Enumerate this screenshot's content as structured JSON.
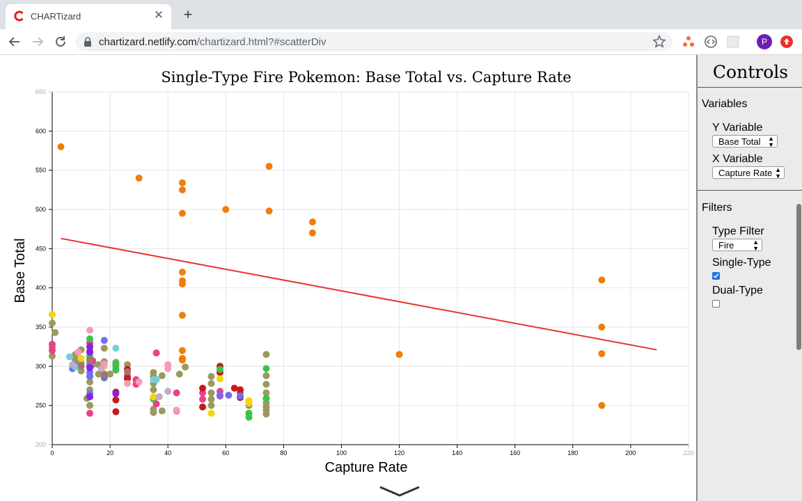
{
  "browser": {
    "tab_title": "CHARTizard",
    "url_host": "chartizard.netlify.com",
    "url_path": "/chartizard.html?#scatterDiv",
    "avatar_letter": "P"
  },
  "controls": {
    "title": "Controls",
    "variables_heading": "Variables",
    "y_label": "Y Variable",
    "y_value": "Base Total",
    "x_label": "X Variable",
    "x_value": "Capture Rate",
    "filters_heading": "Filters",
    "type_label": "Type Filter",
    "type_value": "Fire",
    "single_label": "Single-Type",
    "single_checked": true,
    "dual_label": "Dual-Type",
    "dual_checked": false
  },
  "chart_data": {
    "type": "scatter",
    "title": "Single-Type Fire Pokemon: Base Total vs. Capture Rate",
    "xlabel": "Capture Rate",
    "ylabel": "Base Total",
    "xlim": [
      0,
      220
    ],
    "ylim": [
      200,
      650
    ],
    "xticks": [
      0,
      20,
      40,
      60,
      80,
      100,
      120,
      140,
      160,
      180,
      200,
      220
    ],
    "yticks": [
      200,
      250,
      300,
      350,
      400,
      450,
      500,
      550,
      600,
      650
    ],
    "grid": true,
    "trendline": {
      "color": "#e8322c",
      "x": [
        3,
        209
      ],
      "y": [
        463,
        321
      ]
    },
    "series": [
      {
        "color": "#f07d0a",
        "points": [
          [
            3,
            580
          ],
          [
            30,
            540
          ],
          [
            45,
            534
          ],
          [
            45,
            525
          ],
          [
            45,
            495
          ],
          [
            60,
            500
          ],
          [
            75,
            555
          ],
          [
            75,
            498
          ],
          [
            90,
            484
          ],
          [
            90,
            470
          ],
          [
            45,
            420
          ],
          [
            45,
            409
          ],
          [
            45,
            405
          ],
          [
            45,
            365
          ],
          [
            45,
            320
          ],
          [
            45,
            310
          ],
          [
            45,
            308
          ],
          [
            120,
            315
          ],
          [
            190,
            410
          ],
          [
            190,
            350
          ],
          [
            190,
            316
          ],
          [
            190,
            250
          ]
        ]
      },
      {
        "color": "#9a9a5e",
        "points": [
          [
            0,
            355
          ],
          [
            1,
            343
          ],
          [
            0,
            324
          ],
          [
            0,
            313
          ],
          [
            8,
            315
          ],
          [
            8,
            308
          ],
          [
            10,
            304
          ],
          [
            10,
            294
          ],
          [
            10,
            321
          ],
          [
            12,
            259
          ],
          [
            13,
            280
          ],
          [
            13,
            310
          ],
          [
            13,
            320
          ],
          [
            13,
            270
          ],
          [
            13,
            250
          ],
          [
            14,
            302
          ],
          [
            16,
            302
          ],
          [
            16,
            290
          ],
          [
            18,
            323
          ],
          [
            18,
            306
          ],
          [
            18,
            285
          ],
          [
            20,
            290
          ],
          [
            22,
            300
          ],
          [
            22,
            305
          ],
          [
            22,
            295
          ],
          [
            26,
            302
          ],
          [
            26,
            284
          ],
          [
            35,
            292
          ],
          [
            35,
            287
          ],
          [
            35,
            278
          ],
          [
            35,
            270
          ],
          [
            35,
            258
          ],
          [
            35,
            245
          ],
          [
            35,
            241
          ],
          [
            38,
            288
          ],
          [
            38,
            243
          ],
          [
            44,
            290
          ],
          [
            46,
            299
          ],
          [
            55,
            287
          ],
          [
            55,
            278
          ],
          [
            55,
            266
          ],
          [
            55,
            258
          ],
          [
            55,
            250
          ],
          [
            58,
            262
          ],
          [
            68,
            240
          ],
          [
            68,
            250
          ],
          [
            74,
            315
          ],
          [
            74,
            288
          ],
          [
            74,
            277
          ],
          [
            74,
            266
          ],
          [
            74,
            259
          ],
          [
            74,
            253
          ],
          [
            74,
            248
          ],
          [
            74,
            244
          ],
          [
            74,
            239
          ]
        ]
      },
      {
        "color": "#ee3f8a",
        "points": [
          [
            0,
            328
          ],
          [
            0,
            320
          ],
          [
            0,
            366
          ],
          [
            13,
            330
          ],
          [
            13,
            318
          ],
          [
            13,
            240
          ],
          [
            13,
            287
          ],
          [
            14,
            307
          ],
          [
            26,
            288
          ],
          [
            29,
            283
          ],
          [
            29,
            277
          ],
          [
            36,
            317
          ],
          [
            36,
            252
          ],
          [
            43,
            266
          ],
          [
            43,
            243
          ],
          [
            52,
            266
          ],
          [
            52,
            258
          ],
          [
            58,
            268
          ],
          [
            58,
            262
          ],
          [
            65,
            266
          ]
        ]
      },
      {
        "color": "#c91a1a",
        "points": [
          [
            13,
            300
          ],
          [
            22,
            242
          ],
          [
            22,
            257
          ],
          [
            22,
            267
          ],
          [
            26,
            296
          ],
          [
            26,
            285
          ],
          [
            52,
            272
          ],
          [
            52,
            248
          ],
          [
            58,
            300
          ],
          [
            58,
            292
          ],
          [
            63,
            272
          ],
          [
            65,
            270
          ],
          [
            65,
            260
          ]
        ]
      },
      {
        "color": "#6f6ff0",
        "points": [
          [
            7,
            297
          ],
          [
            8,
            301
          ],
          [
            13,
            303
          ],
          [
            13,
            292
          ],
          [
            13,
            287
          ],
          [
            13,
            265
          ],
          [
            18,
            333
          ],
          [
            18,
            286
          ],
          [
            36,
            283
          ],
          [
            58,
            263
          ],
          [
            61,
            263
          ],
          [
            65,
            262
          ]
        ]
      },
      {
        "color": "#38c44a",
        "points": [
          [
            13,
            335
          ],
          [
            13,
            313
          ],
          [
            22,
            303
          ],
          [
            22,
            296
          ],
          [
            35,
            259
          ],
          [
            58,
            296
          ],
          [
            68,
            240
          ],
          [
            68,
            235
          ],
          [
            74,
            297
          ],
          [
            74,
            259
          ]
        ]
      },
      {
        "color": "#f5d60d",
        "points": [
          [
            0,
            366
          ],
          [
            9,
            318
          ],
          [
            10,
            310
          ],
          [
            18,
            300
          ],
          [
            35,
            261
          ],
          [
            55,
            240
          ],
          [
            58,
            284
          ],
          [
            68,
            256
          ],
          [
            68,
            253
          ]
        ]
      },
      {
        "color": "#f59bb8",
        "points": [
          [
            9,
            318
          ],
          [
            13,
            346
          ],
          [
            18,
            303
          ],
          [
            26,
            278
          ],
          [
            30,
            280
          ],
          [
            40,
            302
          ],
          [
            40,
            297
          ],
          [
            43,
            244
          ]
        ]
      },
      {
        "color": "#8b1ee0",
        "points": [
          [
            13,
            325
          ],
          [
            13,
            318
          ],
          [
            13,
            298
          ],
          [
            13,
            261
          ],
          [
            22,
            265
          ]
        ]
      },
      {
        "color": "#74d0d8",
        "points": [
          [
            6,
            312
          ],
          [
            8,
            299
          ],
          [
            22,
            323
          ],
          [
            35,
            283
          ],
          [
            36,
            283
          ]
        ]
      },
      {
        "color": "#a87468",
        "points": [
          [
            10,
            300
          ],
          [
            13,
            308
          ],
          [
            26,
            293
          ],
          [
            18,
            290
          ]
        ]
      },
      {
        "color": "#c4a8cf",
        "points": [
          [
            7,
            302
          ],
          [
            17,
            297
          ],
          [
            37,
            261
          ],
          [
            40,
            268
          ]
        ]
      }
    ]
  }
}
